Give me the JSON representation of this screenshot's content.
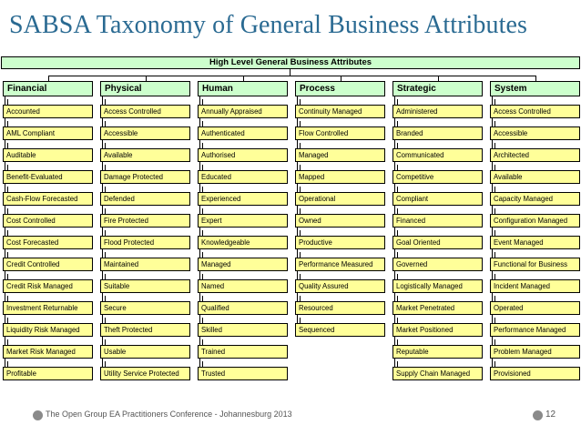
{
  "slide": {
    "title": "SABSA Taxonomy of General Business Attributes",
    "footer": "The Open Group EA Practitioners Conference - Johannesburg 2013",
    "page_number": "12"
  },
  "diagram": {
    "header": "High Level General Business Attributes",
    "columns": [
      {
        "name": "Financial",
        "attributes": [
          "Accounted",
          "AML Compliant",
          "Auditable",
          "Benefit-Evaluated",
          "Cash-Flow Forecasted",
          "Cost Controlled",
          "Cost Forecasted",
          "Credit Controlled",
          "Credit Risk Managed",
          "Investment Returnable",
          "Liquidity Risk Managed",
          "Market Risk Managed",
          "Profitable"
        ]
      },
      {
        "name": "Physical",
        "attributes": [
          "Access Controlled",
          "Accessible",
          "Available",
          "Damage Protected",
          "Defended",
          "Fire Protected",
          "Flood Protected",
          "Maintained",
          "Suitable",
          "Secure",
          "Theft Protected",
          "Usable",
          "Utility Service Protected"
        ]
      },
      {
        "name": "Human",
        "attributes": [
          "Annually Appraised",
          "Authenticated",
          "Authorised",
          "Educated",
          "Experienced",
          "Expert",
          "Knowledgeable",
          "Managed",
          "Named",
          "Qualified",
          "Skilled",
          "Trained",
          "Trusted"
        ]
      },
      {
        "name": "Process",
        "attributes": [
          "Continuity Managed",
          "Flow Controlled",
          "Managed",
          "Mapped",
          "Operational",
          "Owned",
          "Productive",
          "Performance Measured",
          "Quality Assured",
          "Resourced",
          "Sequenced"
        ]
      },
      {
        "name": "Strategic",
        "attributes": [
          "Administered",
          "Branded",
          "Communicated",
          "Competitive",
          "Compliant",
          "Financed",
          "Goal Oriented",
          "Governed",
          "Logistically Managed",
          "Market Penetrated",
          "Market Positioned",
          "Reputable",
          "Supply Chain Managed"
        ]
      },
      {
        "name": "System",
        "attributes": [
          "Access Controlled",
          "Accessible",
          "Architected",
          "Available",
          "Capacity Managed",
          "Configuration Managed",
          "Event Managed",
          "Functional for Business",
          "Incident Managed",
          "Operated",
          "Performance Managed",
          "Problem Managed",
          "Provisioned"
        ]
      }
    ]
  }
}
